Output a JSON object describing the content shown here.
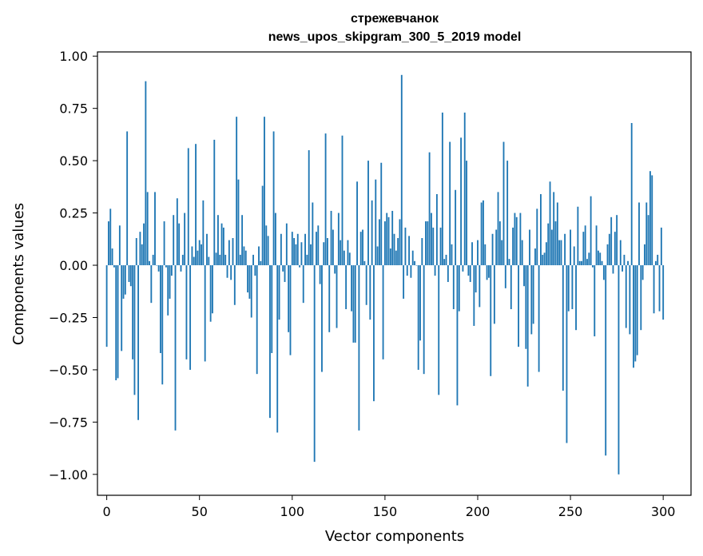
{
  "chart_data": {
    "type": "bar",
    "title": "стрежевчанок",
    "subtitle": "news_upos_skipgram_300_5_2019 model",
    "xlabel": "Vector components",
    "ylabel": "Components values",
    "xlim": [
      -5,
      315
    ],
    "ylim": [
      -1.1,
      1.02
    ],
    "xticks": [
      0,
      50,
      100,
      150,
      200,
      250,
      300
    ],
    "yticks": [
      -1.0,
      -0.75,
      -0.5,
      -0.25,
      0.0,
      0.25,
      0.5,
      0.75,
      1.0
    ],
    "grid": false,
    "bar_color": "#1f77b4",
    "values": [
      -0.39,
      0.21,
      0.27,
      0.08,
      -0.01,
      -0.55,
      -0.54,
      0.19,
      -0.41,
      -0.16,
      -0.14,
      0.64,
      -0.08,
      -0.1,
      -0.45,
      -0.62,
      0.13,
      -0.74,
      0.16,
      0.1,
      0.2,
      0.88,
      0.35,
      0.02,
      -0.18,
      0.05,
      0.35,
      0.0,
      -0.03,
      -0.42,
      -0.57,
      0.21,
      -0.01,
      -0.24,
      -0.16,
      -0.05,
      0.24,
      -0.79,
      0.32,
      0.2,
      -0.03,
      0.05,
      0.25,
      -0.45,
      0.56,
      -0.5,
      0.09,
      0.04,
      0.58,
      0.07,
      0.12,
      0.1,
      0.31,
      -0.46,
      0.15,
      0.04,
      -0.27,
      -0.23,
      0.6,
      0.06,
      0.24,
      0.05,
      0.2,
      0.18,
      0.05,
      -0.06,
      0.12,
      -0.07,
      0.13,
      -0.19,
      0.71,
      0.41,
      0.05,
      0.24,
      0.09,
      0.07,
      -0.13,
      -0.16,
      -0.25,
      0.05,
      -0.05,
      -0.52,
      0.09,
      0.02,
      0.38,
      0.71,
      0.19,
      0.14,
      -0.73,
      -0.42,
      0.64,
      0.25,
      -0.8,
      -0.26,
      0.15,
      -0.03,
      -0.08,
      0.2,
      -0.32,
      -0.43,
      0.16,
      0.13,
      0.1,
      0.15,
      -0.01,
      0.11,
      -0.18,
      0.15,
      0.05,
      0.55,
      0.1,
      0.3,
      -0.94,
      0.16,
      0.19,
      -0.09,
      -0.51,
      0.11,
      0.63,
      0.13,
      -0.32,
      0.26,
      0.17,
      -0.04,
      -0.3,
      0.25,
      0.12,
      0.62,
      0.07,
      -0.21,
      0.12,
      0.06,
      -0.22,
      -0.37,
      -0.37,
      0.4,
      -0.79,
      0.16,
      0.17,
      0.02,
      -0.19,
      0.5,
      -0.26,
      0.31,
      -0.65,
      0.41,
      0.09,
      0.22,
      0.49,
      -0.45,
      0.21,
      0.25,
      0.23,
      0.08,
      0.26,
      0.15,
      0.07,
      0.13,
      0.22,
      0.91,
      -0.16,
      0.18,
      -0.05,
      0.14,
      -0.06,
      0.07,
      0.02,
      0.0,
      -0.5,
      -0.36,
      0.13,
      -0.52,
      0.21,
      0.21,
      0.54,
      0.25,
      0.18,
      -0.05,
      0.34,
      -0.62,
      0.18,
      0.73,
      0.03,
      0.05,
      -0.08,
      0.59,
      0.1,
      -0.21,
      0.36,
      -0.67,
      -0.22,
      0.61,
      -0.03,
      0.73,
      0.5,
      -0.05,
      -0.08,
      0.11,
      -0.29,
      -0.13,
      0.12,
      -0.2,
      0.3,
      0.31,
      0.1,
      -0.07,
      -0.06,
      -0.53,
      0.15,
      -0.28,
      0.17,
      0.35,
      0.21,
      0.12,
      0.59,
      -0.11,
      0.5,
      0.03,
      -0.21,
      0.18,
      0.25,
      0.23,
      -0.39,
      0.25,
      0.12,
      -0.1,
      -0.4,
      -0.58,
      0.17,
      -0.33,
      -0.28,
      0.08,
      0.27,
      -0.51,
      0.34,
      0.05,
      0.06,
      0.11,
      0.2,
      0.4,
      0.17,
      0.35,
      0.21,
      0.3,
      0.12,
      0.12,
      -0.6,
      0.15,
      -0.85,
      -0.22,
      0.17,
      -0.21,
      0.09,
      -0.31,
      0.28,
      0.02,
      0.02,
      0.16,
      0.19,
      0.03,
      0.06,
      0.33,
      -0.01,
      -0.34,
      0.19,
      0.07,
      0.06,
      0.02,
      -0.07,
      -0.91,
      0.1,
      0.15,
      0.23,
      -0.04,
      0.16,
      0.24,
      -1.0,
      0.12,
      -0.03,
      0.05,
      -0.3,
      0.02,
      -0.33,
      0.68,
      -0.49,
      -0.46,
      -0.43,
      0.3,
      -0.31,
      -0.07,
      0.1,
      0.3,
      0.24,
      0.45,
      0.43,
      -0.23,
      0.02,
      0.05,
      -0.22,
      0.18,
      -0.26
    ]
  }
}
